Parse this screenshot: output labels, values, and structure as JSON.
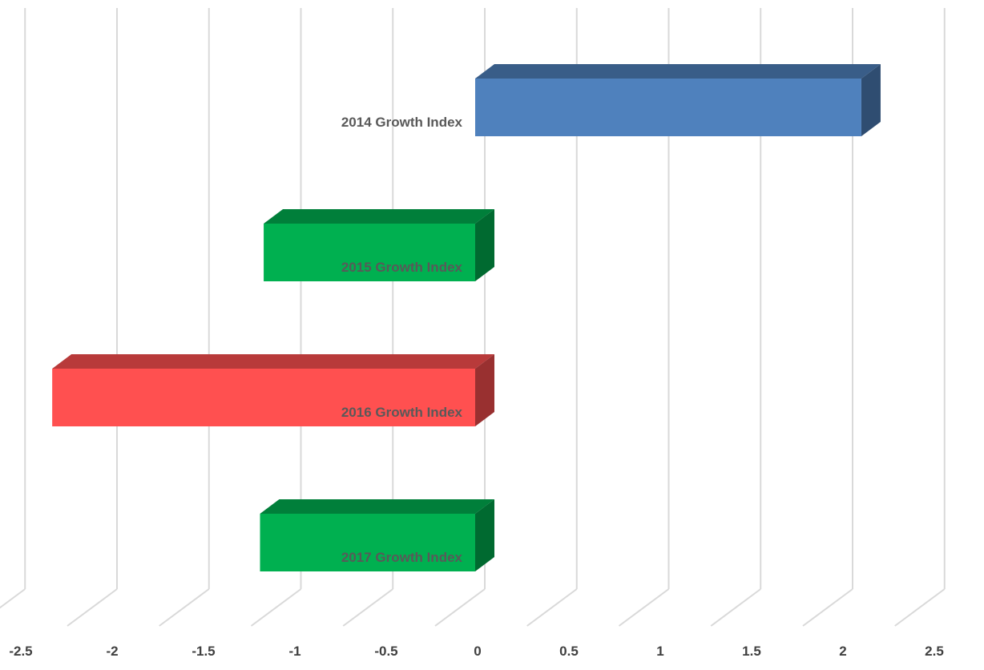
{
  "chart_data": {
    "type": "bar",
    "orientation": "horizontal",
    "style": "3d",
    "categories": [
      "2014 Growth Index",
      "2015 Growth Index",
      "2016 Growth Index",
      "2017 Growth Index"
    ],
    "values": [
      2.1,
      -1.15,
      -2.3,
      -1.17
    ],
    "bar_colors": [
      "#4F81BD",
      "#00B050",
      "#FF5050",
      "#00B050"
    ],
    "x_ticks": [
      "-2.5",
      "-2",
      "-1.5",
      "-1",
      "-0.5",
      "0",
      "0.5",
      "1",
      "1.5",
      "2",
      "2.5"
    ],
    "xlim": [
      -2.5,
      2.5
    ],
    "grid": true,
    "legend": "none",
    "title": "",
    "xlabel": "",
    "ylabel": ""
  }
}
